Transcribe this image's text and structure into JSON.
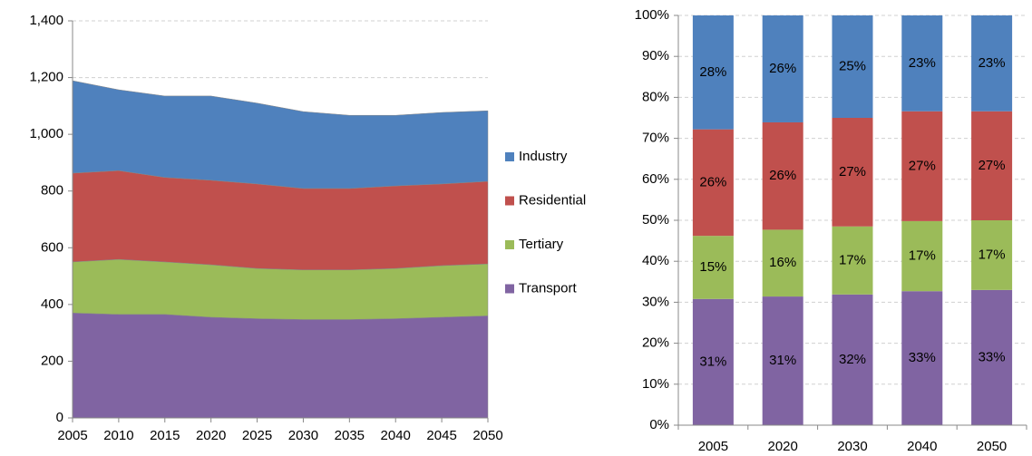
{
  "chart_data": [
    {
      "type": "stacked_area",
      "x": [
        2005,
        2010,
        2015,
        2020,
        2025,
        2030,
        2035,
        2040,
        2045,
        2050
      ],
      "xlim": [
        2005,
        2050
      ],
      "xticks": [
        2005,
        2010,
        2015,
        2020,
        2025,
        2030,
        2035,
        2040,
        2045,
        2050
      ],
      "ylim": [
        0,
        1400
      ],
      "yticks": [
        0,
        200,
        400,
        600,
        800,
        {
          "value": 1000,
          "label": "1,000"
        },
        {
          "value": 1200,
          "label": "1,200"
        },
        {
          "value": 1400,
          "label": "1,400"
        }
      ],
      "grid": true,
      "legend": "right",
      "series": [
        {
          "name": "Transport",
          "color": "#8064a2",
          "values": [
            370,
            365,
            365,
            355,
            350,
            347,
            347,
            350,
            355,
            360
          ]
        },
        {
          "name": "Tertiary",
          "color": "#9bbb59",
          "values": [
            180,
            194,
            185,
            185,
            177,
            175,
            175,
            177,
            182,
            183
          ]
        },
        {
          "name": "Residential",
          "color": "#c0504d",
          "values": [
            313,
            313,
            298,
            298,
            298,
            287,
            287,
            291,
            288,
            291
          ]
        },
        {
          "name": "Industry",
          "color": "#4f81bd",
          "values": [
            326,
            285,
            287,
            297,
            285,
            271,
            258,
            249,
            252,
            249
          ]
        }
      ]
    },
    {
      "type": "stacked_bar",
      "categories": [
        "2005",
        "2020",
        "2030",
        "2040",
        "2050"
      ],
      "ylim": [
        0,
        100
      ],
      "yticks": [
        {
          "value": 0,
          "label": "0%"
        },
        {
          "value": 10,
          "label": "10%"
        },
        {
          "value": 20,
          "label": "20%"
        },
        {
          "value": 30,
          "label": "30%"
        },
        {
          "value": 40,
          "label": "40%"
        },
        {
          "value": 50,
          "label": "50%"
        },
        {
          "value": 60,
          "label": "60%"
        },
        {
          "value": 70,
          "label": "70%"
        },
        {
          "value": 80,
          "label": "80%"
        },
        {
          "value": 90,
          "label": "90%"
        },
        {
          "value": 100,
          "label": "100%"
        }
      ],
      "grid": true,
      "series": [
        {
          "name": "Transport",
          "color": "#8064a2",
          "values": [
            30.8,
            31.4,
            31.9,
            32.7,
            33.0
          ],
          "value_labels": [
            "31%",
            "31%",
            "32%",
            "33%",
            "33%"
          ]
        },
        {
          "name": "Tertiary",
          "color": "#9bbb59",
          "values": [
            15.4,
            16.3,
            16.6,
            17.1,
            17.0
          ],
          "value_labels": [
            "15%",
            "16%",
            "17%",
            "17%",
            "17%"
          ]
        },
        {
          "name": "Residential",
          "color": "#c0504d",
          "values": [
            26.0,
            26.2,
            26.5,
            26.8,
            26.6
          ],
          "value_labels": [
            "26%",
            "26%",
            "27%",
            "27%",
            "27%"
          ]
        },
        {
          "name": "Industry",
          "color": "#4f81bd",
          "values": [
            27.8,
            26.1,
            25.0,
            23.4,
            23.4
          ],
          "value_labels": [
            "28%",
            "26%",
            "25%",
            "23%",
            "23%"
          ]
        }
      ]
    }
  ]
}
